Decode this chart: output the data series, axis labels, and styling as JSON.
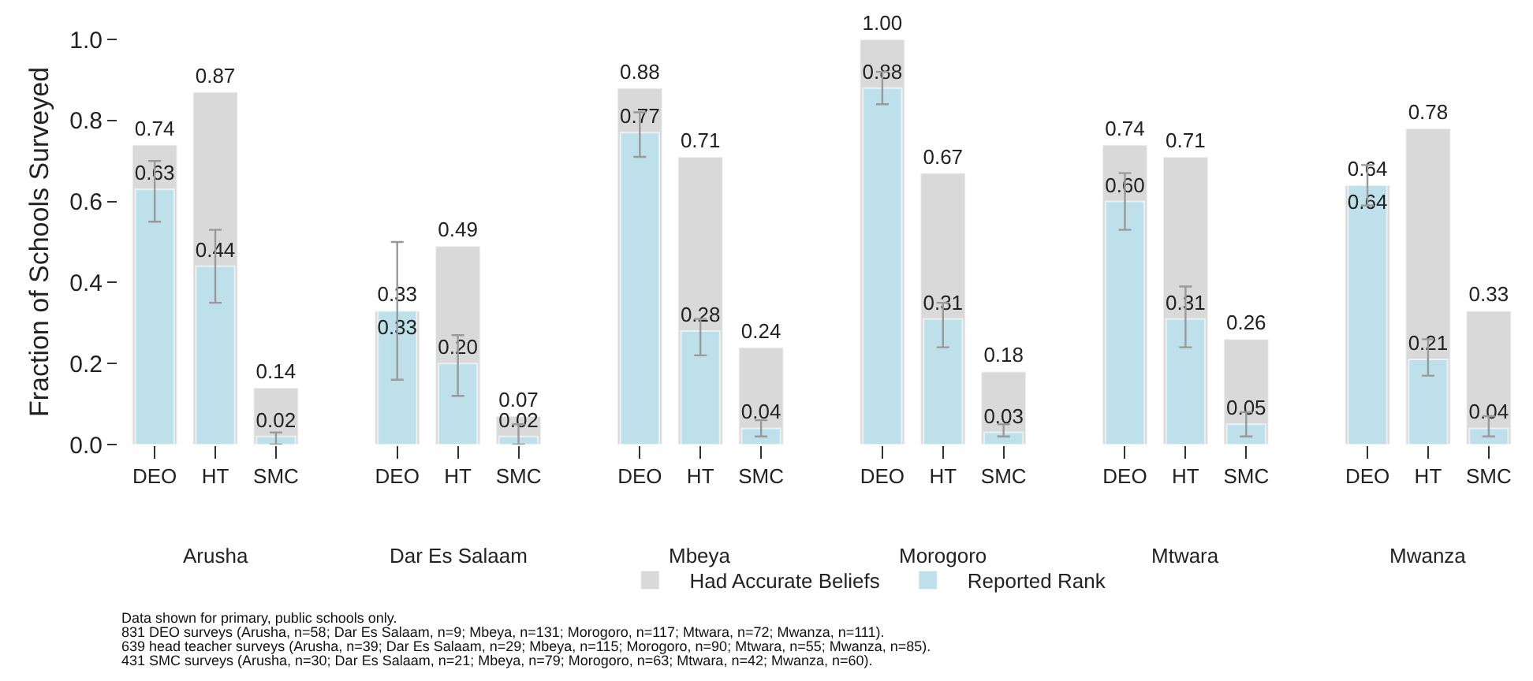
{
  "chart_data": {
    "type": "bar",
    "ylabel": "Fraction of Schools Surveyed",
    "categories": [
      "DEO",
      "HT",
      "SMC",
      null,
      "DEO",
      "HT",
      "SMC",
      null,
      "DEO",
      "HT",
      "SMC",
      null,
      "DEO",
      "HT",
      "SMC",
      null,
      "DEO",
      "HT",
      "SMC",
      null,
      "DEO",
      "HT",
      "SMC"
    ],
    "series": [
      {
        "name": "Had Accurate Beliefs",
        "color": "#d9d9d9",
        "values": [
          0.74,
          0.87,
          0.14,
          null,
          0.33,
          0.49,
          0.07,
          null,
          0.88,
          0.71,
          0.24,
          null,
          1.0,
          0.67,
          0.18,
          null,
          0.74,
          0.71,
          0.26,
          null,
          0.64,
          0.78,
          0.33
        ],
        "value_labels": [
          "0.74",
          "0.87",
          "0.14",
          null,
          "0.33",
          "0.49",
          "0.07",
          null,
          "0.88",
          "0.71",
          "0.24",
          null,
          "1.00",
          "0.67",
          "0.18",
          null,
          "0.74",
          "0.71",
          "0.26",
          null,
          "0.64",
          "0.78",
          "0.33"
        ]
      },
      {
        "name": "Reported Rank",
        "color": "#bde0ea",
        "values": [
          0.63,
          0.44,
          0.02,
          null,
          0.33,
          0.2,
          0.02,
          null,
          0.77,
          0.28,
          0.04,
          null,
          0.88,
          0.31,
          0.03,
          null,
          0.6,
          0.31,
          0.05,
          null,
          0.64,
          0.21,
          0.04
        ],
        "value_labels": [
          "0.63",
          "0.44",
          "0.02",
          null,
          "0.33",
          "0.20",
          "0.02",
          null,
          "0.77",
          "0.28",
          "0.04",
          null,
          "0.88",
          "0.31",
          "0.03",
          null,
          "0.60",
          "0.31",
          "0.05",
          null,
          "0.64",
          "0.21",
          "0.04"
        ],
        "errors": [
          [
            0.55,
            0.7
          ],
          [
            0.35,
            0.53
          ],
          [
            0.0,
            0.03
          ],
          null,
          [
            0.16,
            0.5
          ],
          [
            0.12,
            0.27
          ],
          [
            0.0,
            0.05
          ],
          null,
          [
            0.71,
            0.82
          ],
          [
            0.22,
            0.31
          ],
          [
            0.02,
            0.06
          ],
          null,
          [
            0.84,
            0.92
          ],
          [
            0.24,
            0.35
          ],
          [
            0.02,
            0.05
          ],
          null,
          [
            0.53,
            0.67
          ],
          [
            0.24,
            0.39
          ],
          [
            0.02,
            0.08
          ],
          null,
          [
            0.59,
            0.69
          ],
          [
            0.17,
            0.26
          ],
          [
            0.02,
            0.07
          ]
        ]
      }
    ],
    "ylim": [
      0,
      1
    ],
    "yticks": [
      {
        "value": 0,
        "label": "0.0"
      },
      {
        "value": 0.2,
        "label": "0.2"
      },
      {
        "value": 0.4,
        "label": "0.4"
      },
      {
        "value": 0.6,
        "label": "0.6"
      },
      {
        "value": 0.8,
        "label": "0.8"
      },
      {
        "value": 1,
        "label": "1.0"
      }
    ],
    "grid": false,
    "legend": "bottom",
    "annotations": [
      "Arusha",
      "Dar Es Salaam",
      "Mbeya",
      "Morogoro",
      "Mtwara",
      "Mwanza",
      "Data shown for primary, public schools only.",
      "831 DEO surveys (Arusha, n=58; Dar Es Salaam, n=9; Mbeya, n=131; Morogoro, n=117; Mtwara, n=72; Mwanza, n=111).",
      "639 head teacher surveys (Arusha, n=39; Dar Es Salaam, n=29; Mbeya, n=115; Morogoro, n=90; Mtwara, n=55; Mwanza, n=85).",
      "431 SMC surveys (Arusha, n=30; Dar Es Salaam, n=21; Mbeya, n=79; Morogoro, n=63; Mtwara, n=42; Mwanza, n=60)."
    ]
  }
}
